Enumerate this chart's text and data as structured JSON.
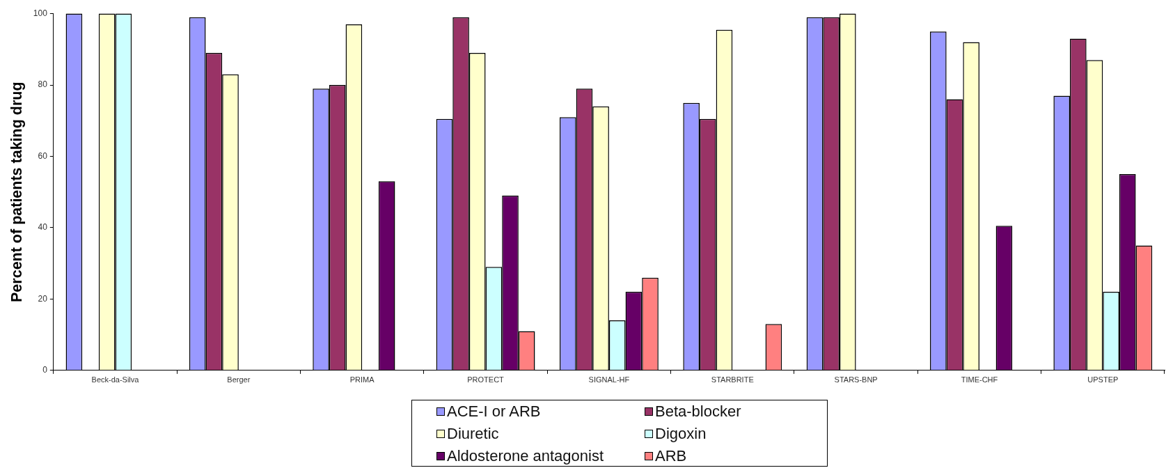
{
  "chart_data": {
    "type": "bar",
    "ylabel": "Percent of patients taking drug",
    "categories": [
      "Beck-da-Silva",
      "Berger",
      "PRIMA",
      "PROTECT",
      "SIGNAL-HF",
      "STARBRITE",
      "STARS-BNP",
      "TIME-CHF",
      "UPSTEP"
    ],
    "series": [
      {
        "name": "ACE-I or ARB",
        "color": "#9999ff",
        "values": [
          100,
          99,
          79,
          70.5,
          71,
          75,
          99,
          95,
          77
        ]
      },
      {
        "name": "Beta-blocker",
        "color": "#993366",
        "values": [
          null,
          89,
          80,
          99,
          79,
          70.5,
          99,
          76,
          93
        ]
      },
      {
        "name": "Diuretic",
        "color": "#ffffcc",
        "values": [
          100,
          83,
          97,
          89,
          74,
          95.5,
          100,
          92,
          87
        ]
      },
      {
        "name": "Digoxin",
        "color": "#ccffff",
        "values": [
          100,
          null,
          null,
          29,
          14,
          null,
          null,
          null,
          22
        ]
      },
      {
        "name": "Aldosterone antagonist",
        "color": "#660066",
        "values": [
          null,
          null,
          53,
          49,
          22,
          null,
          null,
          40.5,
          55
        ]
      },
      {
        "name": "ARB",
        "color": "#ff8080",
        "values": [
          null,
          null,
          null,
          11,
          26,
          13,
          null,
          null,
          35
        ]
      }
    ],
    "ylim": [
      0,
      100
    ],
    "yticks": [
      0,
      20,
      40,
      60,
      80,
      100
    ],
    "grid": false,
    "legend": "bottom"
  }
}
